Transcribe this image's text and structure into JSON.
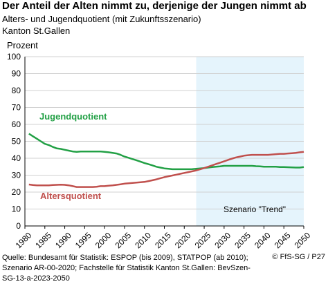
{
  "title": "Der Anteil der Alten nimmt zu, derjenige der Jungen nimmt ab",
  "subtitle": "Alters- und Jugendquotient (mit Zukunftsszenario)",
  "region": "Kanton St.Gallen",
  "footer": {
    "source": "Quelle: Bundesamt für Statistik: ESPOP (bis 2009), STATPOP (ab 2010); Szenario AR-00-2020; Fachstelle für Statistik Kanton St.Gallen: BevSzen-SG-13-a-2023-2050",
    "copyright": "© FfS-SG / P27"
  },
  "colors": {
    "jugend": "#22a045",
    "alter": "#c0504d",
    "scenario_bg": "#e5f4fc",
    "grid": "#d0d0d0"
  },
  "chart_data": {
    "type": "line",
    "ylabel": "Prozent",
    "xlim": [
      1980,
      2050
    ],
    "ylim": [
      0,
      100
    ],
    "x_ticks": [
      1980,
      1985,
      1990,
      1995,
      2000,
      2005,
      2010,
      2015,
      2020,
      2025,
      2030,
      2035,
      2040,
      2045,
      2050
    ],
    "y_ticks": [
      0,
      10,
      20,
      30,
      40,
      50,
      60,
      70,
      80,
      90,
      100
    ],
    "grid": "horizontal",
    "scenario": {
      "label": "Szenario \"Trend\"",
      "start": 2023,
      "end": 2050
    },
    "x": [
      1981,
      1982,
      1983,
      1984,
      1985,
      1986,
      1987,
      1988,
      1989,
      1990,
      1991,
      1992,
      1993,
      1994,
      1995,
      1996,
      1997,
      1998,
      1999,
      2000,
      2001,
      2002,
      2003,
      2004,
      2005,
      2006,
      2007,
      2008,
      2009,
      2010,
      2011,
      2012,
      2013,
      2014,
      2015,
      2016,
      2017,
      2018,
      2019,
      2020,
      2021,
      2022,
      2023,
      2024,
      2025,
      2026,
      2027,
      2028,
      2029,
      2030,
      2031,
      2032,
      2033,
      2034,
      2035,
      2036,
      2037,
      2038,
      2039,
      2040,
      2041,
      2042,
      2043,
      2044,
      2045,
      2046,
      2047,
      2048,
      2049,
      2050
    ],
    "series": [
      {
        "name": "Jugendquotient",
        "color_key": "jugend",
        "values": [
          54.5,
          53.0,
          51.5,
          50.0,
          48.5,
          47.8,
          46.7,
          45.8,
          45.5,
          45.0,
          44.5,
          44.0,
          43.8,
          44.0,
          44.0,
          44.0,
          44.0,
          44.0,
          44.0,
          43.8,
          43.5,
          43.2,
          42.8,
          42.0,
          41.0,
          40.3,
          39.5,
          38.8,
          38.0,
          37.2,
          36.5,
          35.8,
          35.0,
          34.5,
          34.0,
          33.8,
          33.5,
          33.5,
          33.5,
          33.5,
          33.5,
          33.6,
          33.8,
          34.0,
          34.2,
          34.5,
          34.8,
          35.0,
          35.2,
          35.5,
          35.5,
          35.5,
          35.5,
          35.5,
          35.5,
          35.5,
          35.5,
          35.3,
          35.2,
          35.0,
          35.0,
          35.0,
          35.0,
          34.8,
          34.8,
          34.7,
          34.6,
          34.5,
          34.5,
          34.8
        ]
      },
      {
        "name": "Altersquotient",
        "color_key": "alter",
        "values": [
          24.5,
          24.2,
          24.0,
          24.0,
          24.0,
          24.0,
          24.2,
          24.3,
          24.4,
          24.3,
          24.0,
          23.5,
          23.0,
          23.0,
          23.0,
          23.0,
          23.0,
          23.2,
          23.5,
          23.5,
          23.8,
          24.0,
          24.3,
          24.6,
          25.0,
          25.2,
          25.4,
          25.6,
          25.8,
          26.0,
          26.5,
          27.0,
          27.5,
          28.2,
          28.8,
          29.3,
          29.8,
          30.3,
          30.8,
          31.3,
          31.8,
          32.3,
          32.8,
          33.5,
          34.2,
          35.0,
          35.8,
          36.6,
          37.4,
          38.2,
          39.0,
          39.8,
          40.5,
          41.0,
          41.5,
          41.8,
          42.0,
          42.0,
          42.0,
          42.0,
          42.0,
          42.2,
          42.4,
          42.6,
          42.6,
          42.8,
          43.0,
          43.2,
          43.5,
          43.8
        ]
      }
    ]
  }
}
